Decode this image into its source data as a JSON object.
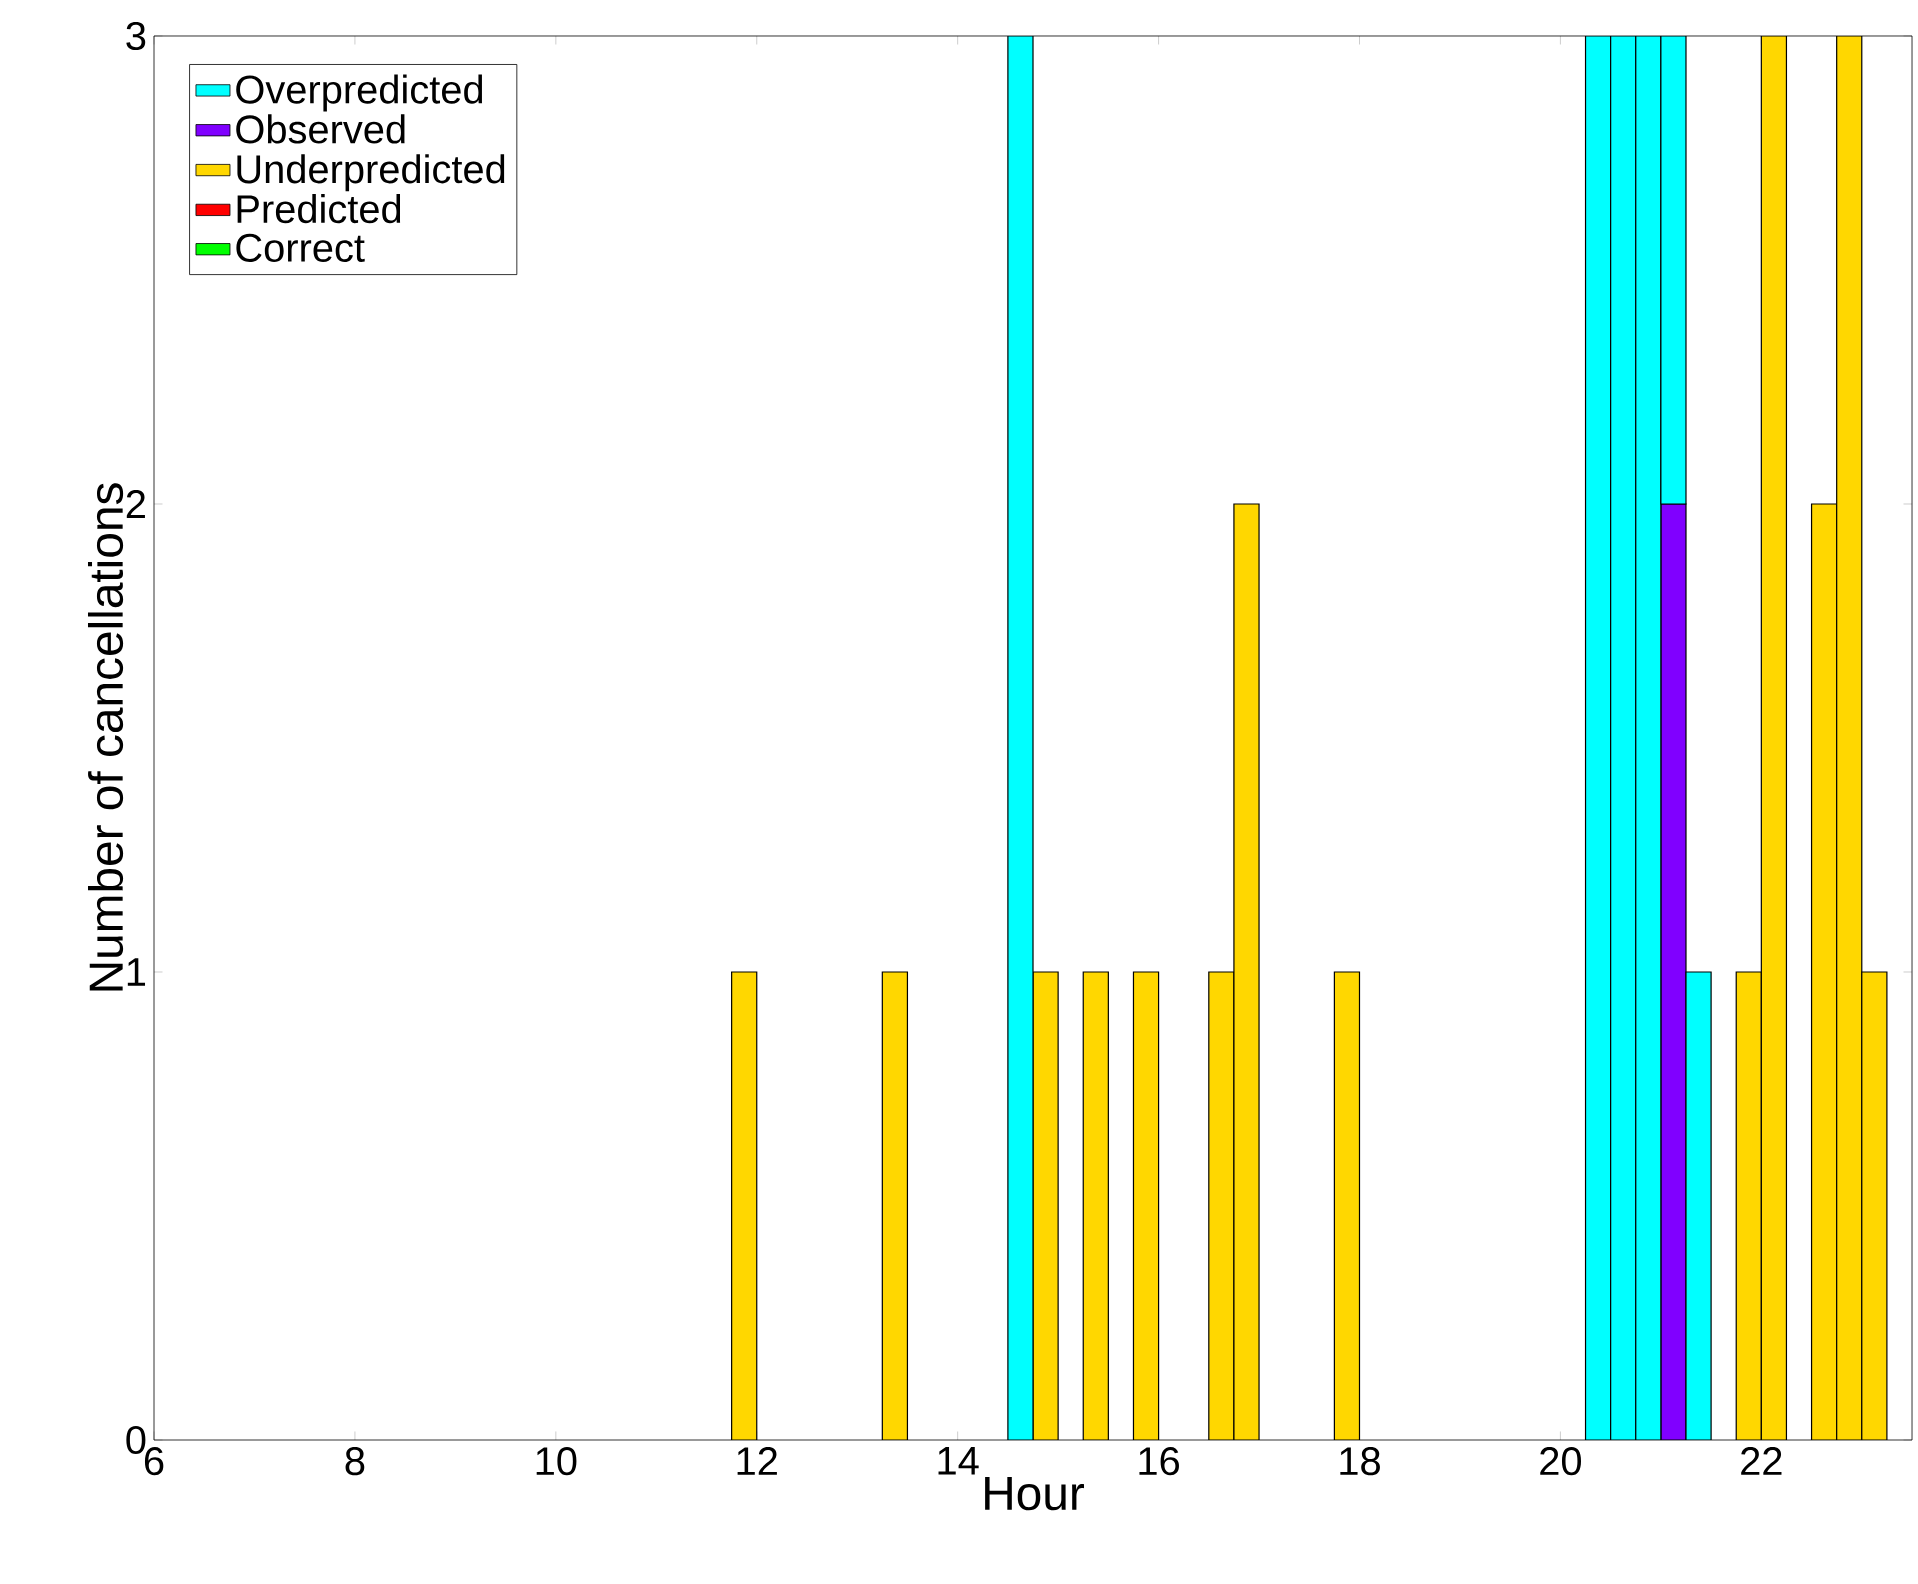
{
  "chart_data": {
    "type": "bar",
    "stacked": true,
    "xlabel": "Hour",
    "ylabel": "Number of cancellations",
    "x": [
      11.875,
      13.375,
      14.625,
      14.875,
      15.375,
      15.875,
      16.625,
      16.875,
      17.875,
      20.375,
      20.625,
      20.875,
      21.125,
      21.375,
      21.875,
      22.125,
      22.625,
      22.875,
      23.125
    ],
    "series": [
      {
        "name": "Correct",
        "color": "#00ff00",
        "values": [
          null,
          null,
          null,
          null,
          null,
          null,
          null,
          null,
          null,
          null,
          null,
          null,
          null,
          null,
          null,
          null,
          null,
          null,
          null
        ]
      },
      {
        "name": "Predicted",
        "color": "#ff0000",
        "values": [
          null,
          null,
          null,
          null,
          null,
          null,
          null,
          null,
          null,
          null,
          null,
          null,
          null,
          null,
          null,
          null,
          null,
          null,
          null
        ]
      },
      {
        "name": "Underpredicted",
        "color": "#ffd700",
        "values": [
          1,
          1,
          null,
          1,
          1,
          1,
          1,
          2,
          1,
          null,
          null,
          null,
          null,
          null,
          1,
          3,
          2,
          3,
          1
        ]
      },
      {
        "name": "Observed",
        "color": "#8000ff",
        "values": [
          null,
          null,
          null,
          null,
          null,
          null,
          null,
          null,
          null,
          null,
          null,
          null,
          2,
          null,
          null,
          null,
          null,
          null,
          null
        ]
      },
      {
        "name": "Overpredicted",
        "color": "#00ffff",
        "values": [
          null,
          null,
          3,
          null,
          null,
          null,
          null,
          null,
          null,
          3,
          3,
          3,
          1,
          1,
          null,
          null,
          null,
          null,
          null
        ]
      }
    ],
    "xlim": [
      6,
      23.5
    ],
    "ylim": [
      0,
      3
    ],
    "xticks": [
      6,
      8,
      10,
      12,
      14,
      16,
      18,
      20,
      22
    ],
    "yticks": [
      0,
      1,
      2,
      3
    ],
    "grid": false,
    "legend": "top left"
  }
}
